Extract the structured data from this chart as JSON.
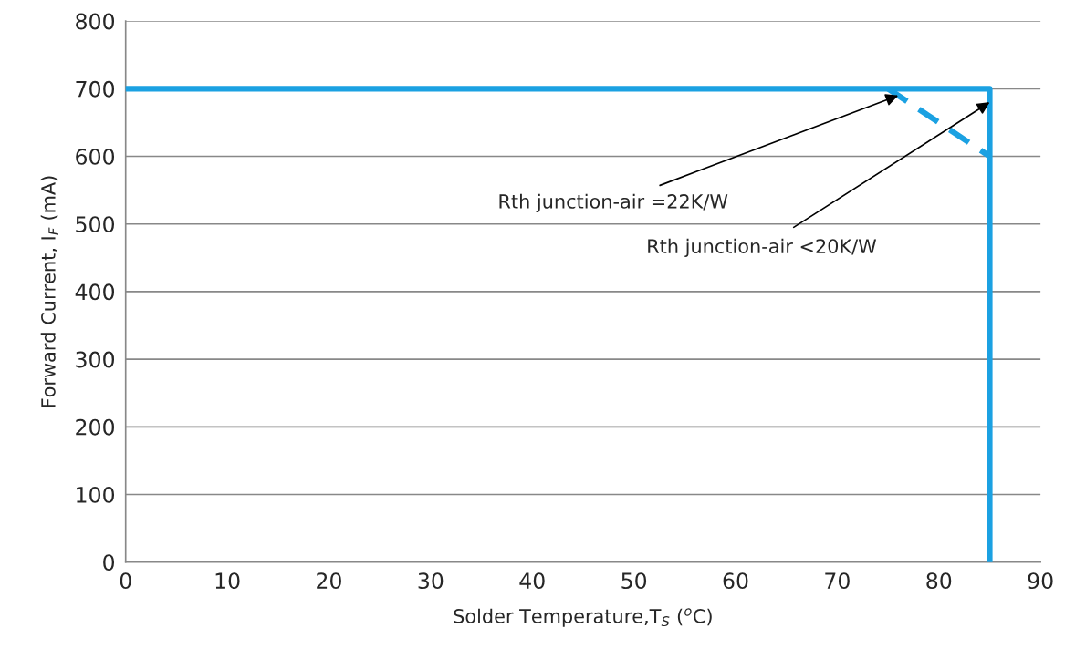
{
  "chart_data": {
    "type": "line",
    "xlabel": "Solder Temperature,T$_{S}$ ($^{o}$C)",
    "ylabel": "Forward Current, I$_{F}$ (mA)",
    "series": [
      {
        "x": [
          0,
          85,
          85
        ],
        "values": [
          700,
          700,
          0
        ],
        "color": "#1ba1e2",
        "line_style": "solid"
      },
      {
        "x": [
          75,
          85
        ],
        "values": [
          700,
          600
        ],
        "color": "#1ba1e2",
        "line_style": "dashed"
      }
    ],
    "xlim": [
      0,
      90
    ],
    "xticks": [
      0,
      10,
      20,
      30,
      40,
      50,
      60,
      70,
      80,
      90
    ],
    "ylim": [
      0,
      800
    ],
    "yticks": [
      0,
      100,
      200,
      300,
      400,
      500,
      600,
      700,
      800
    ],
    "grid": "y",
    "marker": "none",
    "legend": false,
    "annotations": [
      {
        "text": "Rth junction-air =22K/W",
        "x": 76,
        "y": 690
      },
      {
        "text": "Rth junction-air <20K/W",
        "x": 85,
        "y": 680
      }
    ]
  }
}
